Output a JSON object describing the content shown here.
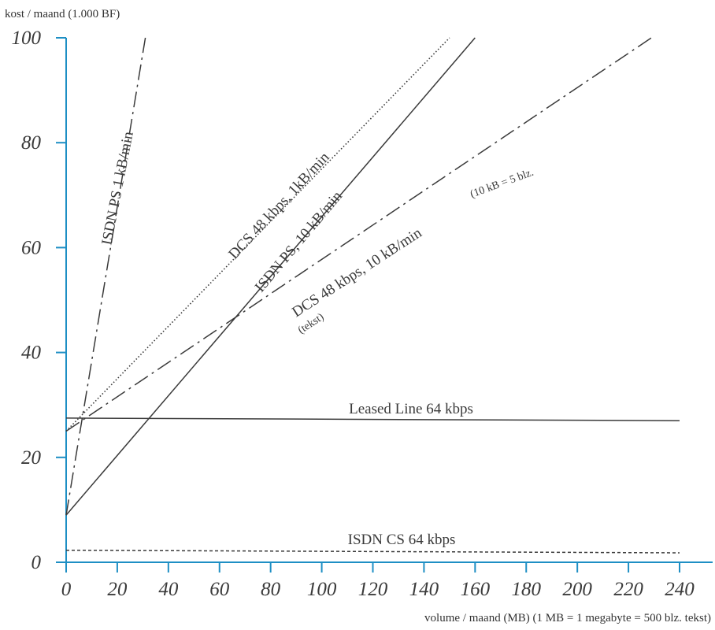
{
  "chart_data": {
    "type": "line",
    "title": "",
    "ylabel": "kost / maand (1.000 BF)",
    "xlabel": "volume / maand (MB)   (1 MB = 1 megabyte = 500 blz. tekst)",
    "xlim": [
      0,
      240
    ],
    "ylim": [
      0,
      100
    ],
    "xticks": [
      0,
      20,
      40,
      60,
      80,
      100,
      120,
      140,
      160,
      180,
      200,
      220,
      240
    ],
    "yticks": [
      0,
      20,
      40,
      60,
      80,
      100
    ],
    "grid": false,
    "series": [
      {
        "name": "ISDN PS 1 kB/min",
        "style": "dashdot",
        "x": [
          0,
          31
        ],
        "y": [
          9,
          100
        ]
      },
      {
        "name": "DCS 48 kbps, 1kB/min",
        "style": "dotted",
        "x": [
          0,
          150
        ],
        "y": [
          25,
          100
        ]
      },
      {
        "name": "ISDN PS, 10 kB/min",
        "style": "solid",
        "x": [
          0,
          160
        ],
        "y": [
          9,
          100
        ]
      },
      {
        "name": "DCS 48 kbps, 10 kB/min",
        "style": "dashdot",
        "x": [
          0,
          229
        ],
        "y": [
          25,
          100
        ]
      },
      {
        "name": "Leased Line 64 kbps",
        "style": "solid",
        "x": [
          0,
          240
        ],
        "y": [
          27.5,
          27
        ]
      },
      {
        "name": "ISDN CS 64 kbps",
        "style": "dashed",
        "x": [
          0,
          240
        ],
        "y": [
          2.3,
          1.8
        ]
      }
    ],
    "annotations": [
      {
        "text": "(10 kB = 5 blz.",
        "near": "DCS 48 kbps, 10 kB/min"
      },
      {
        "text": "(tekst)",
        "near": "DCS 48 kbps, 10 kB/min"
      }
    ]
  }
}
